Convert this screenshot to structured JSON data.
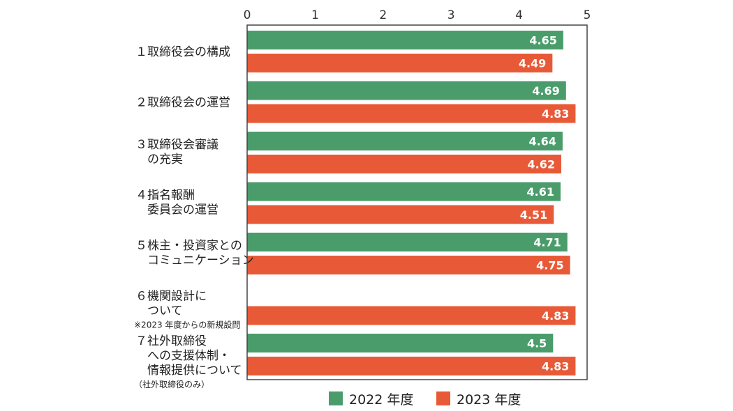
{
  "chart_data": {
    "type": "bar",
    "orientation": "horizontal",
    "xlim": [
      0,
      5
    ],
    "x_ticks": [
      "0",
      "1",
      "2",
      "3",
      "4",
      "5"
    ],
    "grid": false,
    "legend_position": "bottom",
    "categories": [
      {
        "lines": [
          "１取締役会の構成"
        ],
        "note": ""
      },
      {
        "lines": [
          "２取締役会の運営"
        ],
        "note": ""
      },
      {
        "lines": [
          "３取締役会審議",
          "　の充実"
        ],
        "note": ""
      },
      {
        "lines": [
          "４指名報酬",
          "　委員会の運営"
        ],
        "note": ""
      },
      {
        "lines": [
          "５株主・投資家との",
          "　コミュニケーション"
        ],
        "note": ""
      },
      {
        "lines": [
          "６機関設計に",
          "　ついて"
        ],
        "note": "※2023 年度からの新規設問"
      },
      {
        "lines": [
          "７社外取締役",
          "　への支援体制・",
          "　情報提供について"
        ],
        "note": "（社外取締役のみ）"
      }
    ],
    "series": [
      {
        "name": "2022 年度",
        "color": "#4a9d6b",
        "values": [
          4.65,
          4.69,
          4.64,
          4.61,
          4.71,
          null,
          4.5
        ],
        "labels": [
          "4.65",
          "4.69",
          "4.64",
          "4.61",
          "4.71",
          "",
          "4.5"
        ]
      },
      {
        "name": "2023 年度",
        "color": "#e85a37",
        "values": [
          4.49,
          4.83,
          4.62,
          4.51,
          4.75,
          4.83,
          4.83
        ],
        "labels": [
          "4.49",
          "4.83",
          "4.62",
          "4.51",
          "4.75",
          "4.83",
          "4.83"
        ]
      }
    ]
  }
}
